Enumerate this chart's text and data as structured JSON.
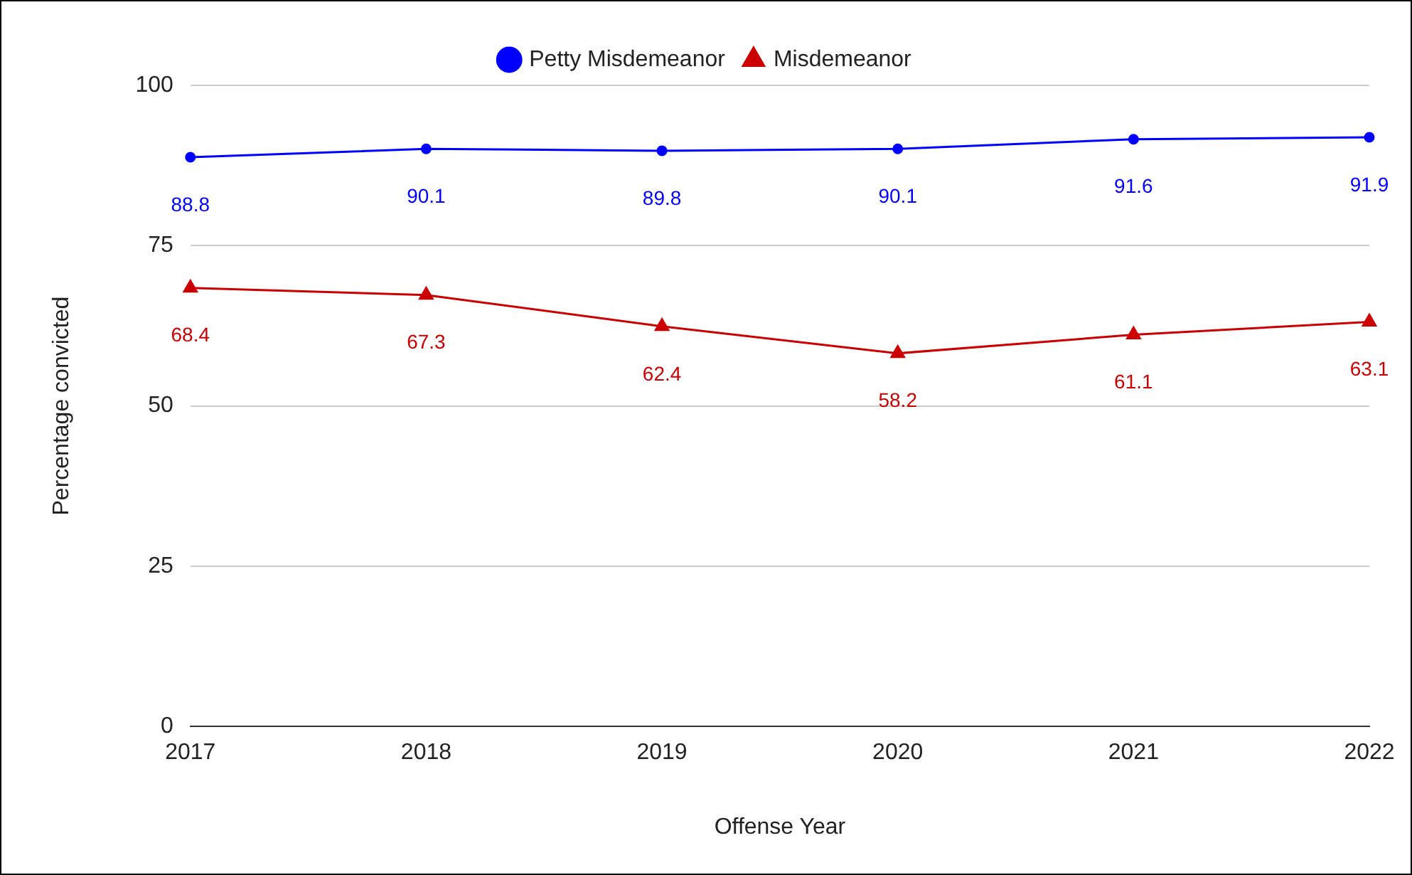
{
  "chart_data": {
    "type": "line",
    "xlabel": "Offense Year",
    "ylabel": "Percentage convicted",
    "categories": [
      "2017",
      "2018",
      "2019",
      "2020",
      "2021",
      "2022"
    ],
    "series": [
      {
        "name": "Petty Misdemeanor",
        "color": "#0000ff",
        "marker": "circle",
        "values": [
          88.8,
          90.1,
          89.8,
          90.1,
          91.6,
          91.9
        ]
      },
      {
        "name": "Misdemeanor",
        "color": "#cc0000",
        "marker": "triangle",
        "values": [
          68.4,
          67.3,
          62.4,
          58.2,
          61.1,
          63.1
        ]
      }
    ],
    "ylim": [
      0,
      100
    ],
    "yticks": [
      0,
      25,
      50,
      75,
      100
    ],
    "grid": "y",
    "legend": "top",
    "data_labels": true
  }
}
